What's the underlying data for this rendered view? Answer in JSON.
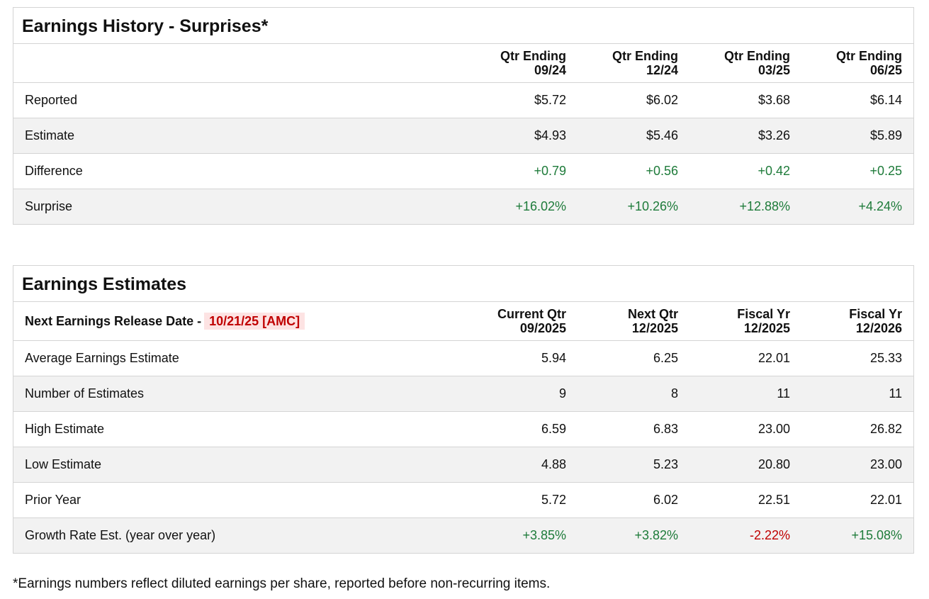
{
  "history": {
    "title": "Earnings History - Surprises*",
    "columns": [
      {
        "line1": "Qtr Ending",
        "line2": "09/24"
      },
      {
        "line1": "Qtr Ending",
        "line2": "12/24"
      },
      {
        "line1": "Qtr Ending",
        "line2": "03/25"
      },
      {
        "line1": "Qtr Ending",
        "line2": "06/25"
      }
    ],
    "rows": [
      {
        "label": "Reported",
        "cells": [
          "$5.72",
          "$6.02",
          "$3.68",
          "$6.14"
        ]
      },
      {
        "label": "Estimate",
        "cells": [
          "$4.93",
          "$5.46",
          "$3.26",
          "$5.89"
        ]
      },
      {
        "label": "Difference",
        "cells": [
          "+0.79",
          "+0.56",
          "+0.42",
          "+0.25"
        ]
      },
      {
        "label": "Surprise",
        "cells": [
          "+16.02%",
          "+10.26%",
          "+12.88%",
          "+4.24%"
        ]
      }
    ]
  },
  "estimates": {
    "title": "Earnings Estimates",
    "release_label": "Next Earnings Release Date -",
    "release_date": "10/21/25 [AMC]",
    "columns": [
      {
        "line1": "Current Qtr",
        "line2": "09/2025"
      },
      {
        "line1": "Next Qtr",
        "line2": "12/2025"
      },
      {
        "line1": "Fiscal Yr",
        "line2": "12/2025"
      },
      {
        "line1": "Fiscal Yr",
        "line2": "12/2026"
      }
    ],
    "rows": [
      {
        "label": "Average Earnings Estimate",
        "cells": [
          "5.94",
          "6.25",
          "22.01",
          "25.33"
        ]
      },
      {
        "label": "Number of Estimates",
        "cells": [
          "9",
          "8",
          "11",
          "11"
        ]
      },
      {
        "label": "High Estimate",
        "cells": [
          "6.59",
          "6.83",
          "23.00",
          "26.82"
        ]
      },
      {
        "label": "Low Estimate",
        "cells": [
          "4.88",
          "5.23",
          "20.80",
          "23.00"
        ]
      },
      {
        "label": "Prior Year",
        "cells": [
          "5.72",
          "6.02",
          "22.51",
          "22.01"
        ]
      },
      {
        "label": "Growth Rate Est. (year over year)",
        "cells": [
          "+3.85%",
          "+3.82%",
          "-2.22%",
          "+15.08%"
        ]
      }
    ]
  },
  "footnote": "*Earnings numbers reflect diluted earnings per share, reported before non-recurring items.",
  "positive_color": "#1e7b3a",
  "negative_color": "#c00000"
}
